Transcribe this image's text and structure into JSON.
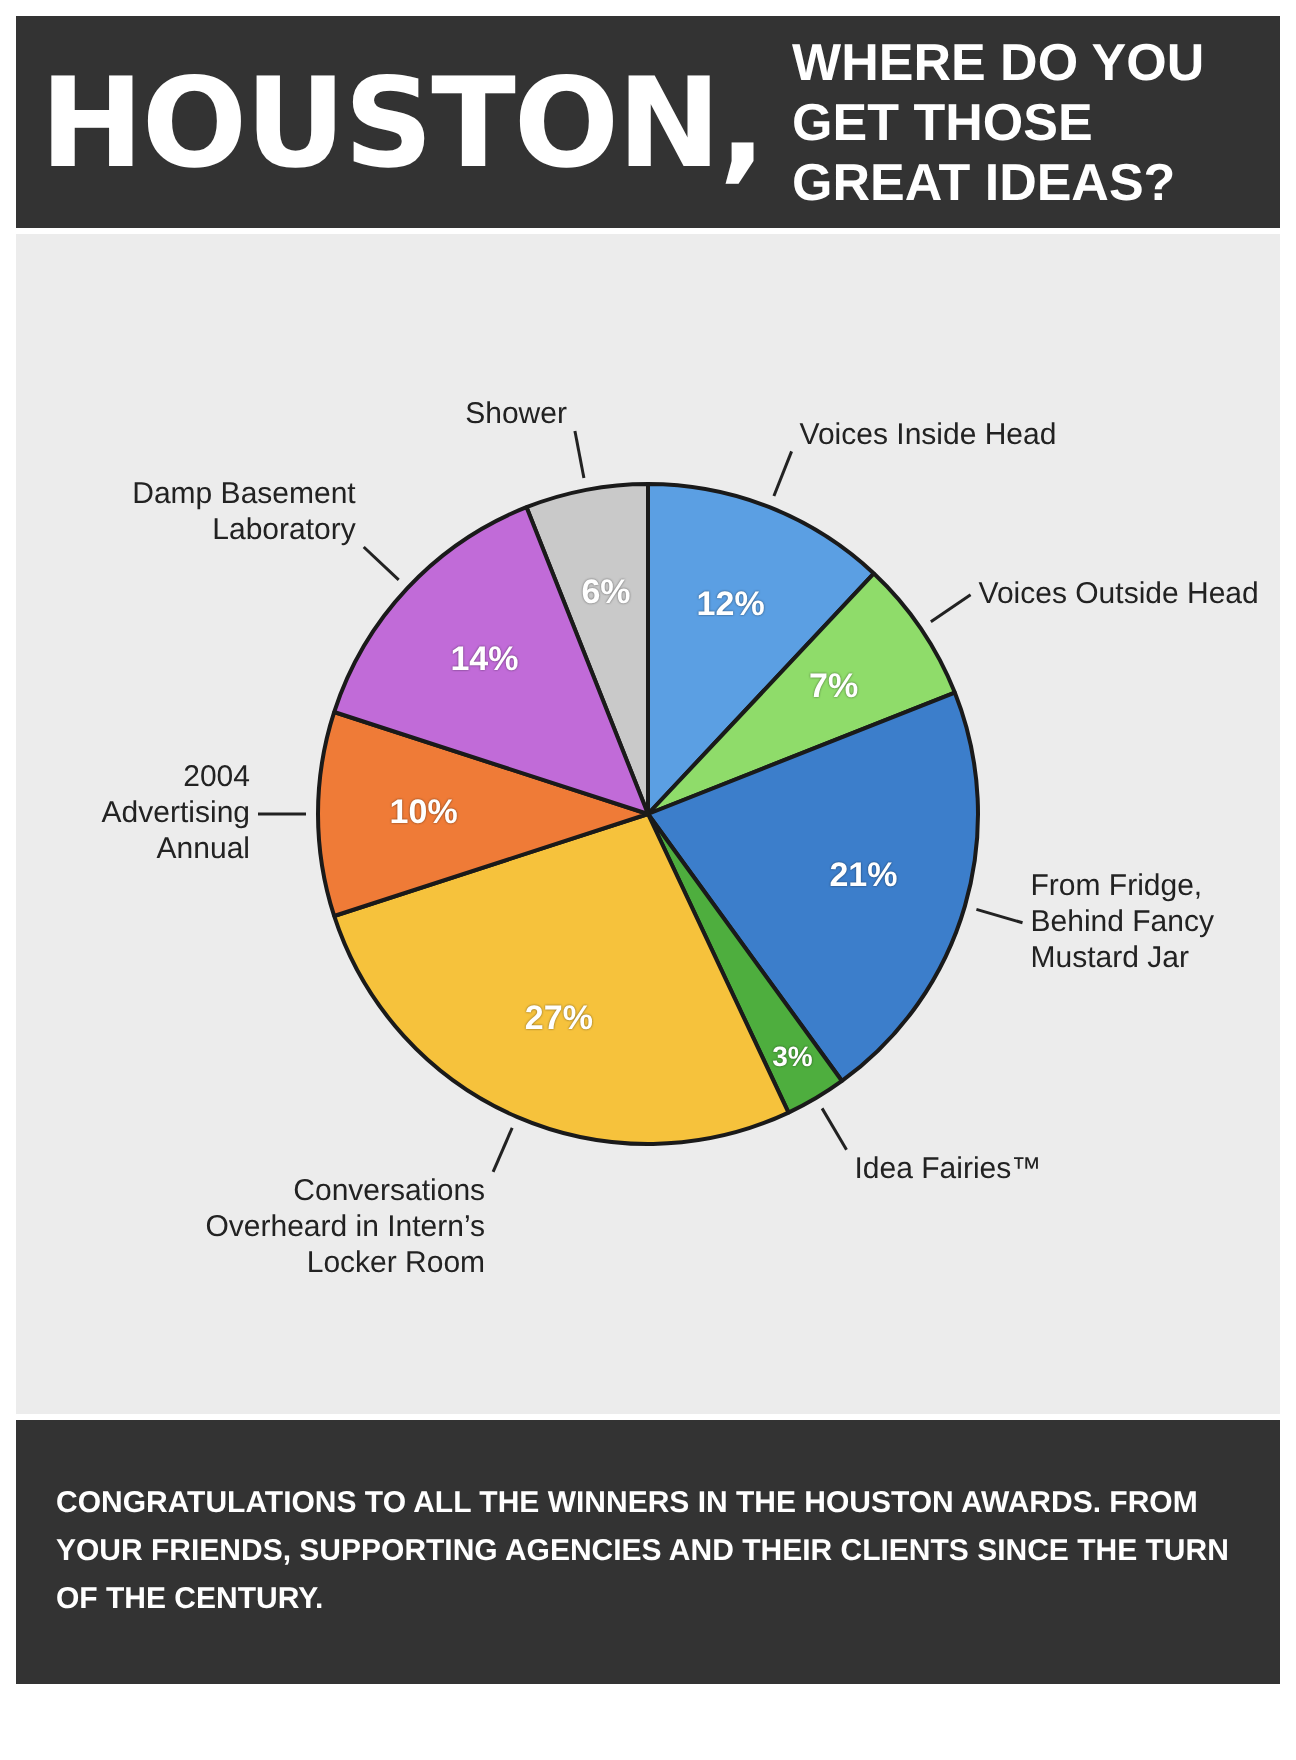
{
  "chart_data": {
    "type": "pie",
    "title": "HOUSTON,",
    "subtitle": "WHERE DO YOU GET THOSE GREAT IDEAS?",
    "categories": [
      "Shower",
      "Voices Inside Head",
      "Voices Outside Head",
      "From Fridge, Behind Fancy Mustard Jar",
      "Idea Fairies™",
      "Conversations Overheard in Intern’s Locker Room",
      "2004 Advertising Annual",
      "Damp Basement Laboratory"
    ],
    "values": [
      6,
      12,
      7,
      21,
      3,
      27,
      10,
      14
    ],
    "value_labels": [
      "6%",
      "12%",
      "7%",
      "21%",
      "3%",
      "27%",
      "10%",
      "14%"
    ],
    "colors": [
      "#c9c9c9",
      "#5b9fe3",
      "#8fdc6a",
      "#3c7ecb",
      "#4eae3e",
      "#f6c23c",
      "#ef7b37",
      "#c16bd8"
    ],
    "legend": false,
    "annotations": [
      "CONGRATULATIONS TO ALL THE WINNERS IN THE HOUSTON AWARDS. FROM YOUR FRIENDS, SUPPORTING AGENCIES AND THEIR CLIENTS SINCE THE TURN OF THE CENTURY."
    ]
  }
}
